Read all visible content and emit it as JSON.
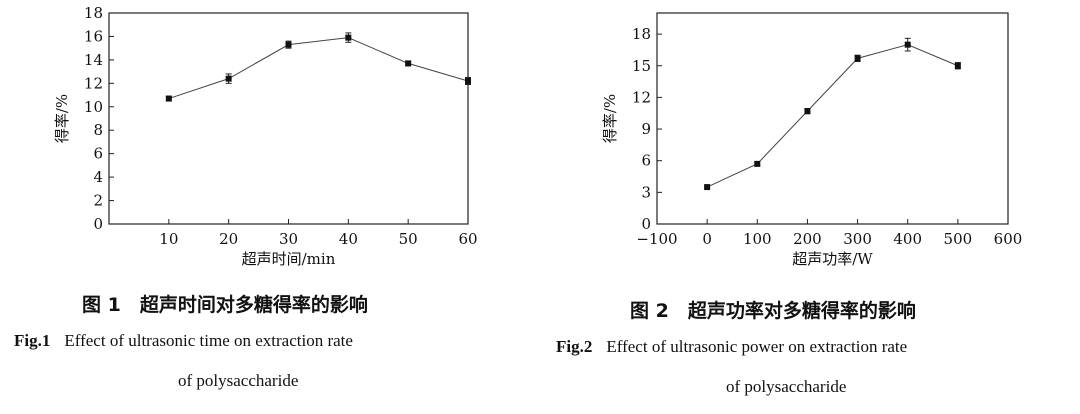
{
  "chart_data": [
    {
      "type": "line",
      "xlabel": "超声时间/min",
      "ylabel": "得率/%",
      "xlim": [
        0,
        60
      ],
      "ylim": [
        0,
        18
      ],
      "xticks": [
        10,
        20,
        30,
        40,
        50,
        60
      ],
      "yticks": [
        0,
        2,
        4,
        6,
        8,
        10,
        12,
        14,
        16,
        18
      ],
      "x": [
        10,
        20,
        30,
        40,
        50,
        60
      ],
      "y": [
        10.7,
        12.4,
        15.3,
        15.9,
        13.7,
        12.2
      ],
      "error": [
        0.2,
        0.4,
        0.3,
        0.4,
        0.2,
        0.3
      ],
      "grid": false
    },
    {
      "type": "line",
      "xlabel": "超声功率/W",
      "ylabel": "得率/%",
      "xlim": [
        -100,
        600
      ],
      "ylim": [
        0,
        20
      ],
      "xticks": [
        -100,
        0,
        100,
        200,
        300,
        400,
        500,
        600
      ],
      "yticks": [
        0,
        3,
        6,
        9,
        12,
        15,
        18
      ],
      "x": [
        0,
        100,
        200,
        300,
        400,
        500
      ],
      "y": [
        3.5,
        5.7,
        10.7,
        15.7,
        17.0,
        15.0
      ],
      "error": [
        0.1,
        0.15,
        0.25,
        0.3,
        0.6,
        0.3
      ],
      "grid": false
    }
  ],
  "captions": [
    {
      "cn": "图 1　超声时间对多糖得率的影响",
      "en_label": "Fig.1",
      "en_line1": "Effect of ultrasonic time on extraction rate",
      "en_line2": "of polysaccharide"
    },
    {
      "cn": "图 2　超声功率对多糖得率的影响",
      "en_label": "Fig.2",
      "en_line1": "Effect of ultrasonic power on extraction rate",
      "en_line2": "of polysaccharide"
    }
  ]
}
